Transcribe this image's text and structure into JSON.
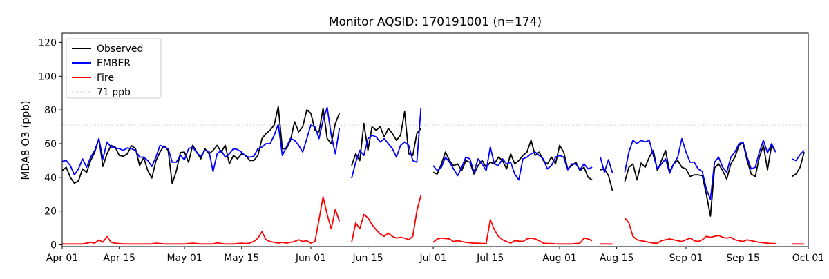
{
  "title": "Monitor AQSID: 170191001 (n=174)",
  "legend": {
    "items": [
      {
        "label": "Observed",
        "color": "#000000",
        "style": "solid"
      },
      {
        "label": "EMBER",
        "color": "#0000ff",
        "style": "solid"
      },
      {
        "label": "Fire",
        "color": "#ff0000",
        "style": "solid"
      },
      {
        "label": "71 ppb",
        "color": "#d3d3d3",
        "style": "dotted"
      }
    ]
  },
  "chart_data": {
    "type": "line",
    "title": "Monitor AQSID: 170191001 (n=174)",
    "xlabel": "",
    "ylabel": "MDA8 O3 (ppb)",
    "grid": false,
    "legend_position": "upper left",
    "ylim": [
      -1,
      125.5
    ],
    "yticks": [
      0,
      20,
      40,
      60,
      80,
      100,
      120
    ],
    "n_days": 183,
    "x_start": "Apr 01",
    "x_end": "Oct 01",
    "xticks": [
      {
        "label": "Apr 01",
        "day": 0
      },
      {
        "label": "Apr 15",
        "day": 14
      },
      {
        "label": "May 01",
        "day": 30
      },
      {
        "label": "May 15",
        "day": 44
      },
      {
        "label": "Jun 01",
        "day": 61
      },
      {
        "label": "Jun 15",
        "day": 75
      },
      {
        "label": "Jul 01",
        "day": 91
      },
      {
        "label": "Jul 15",
        "day": 105
      },
      {
        "label": "Aug 01",
        "day": 122
      },
      {
        "label": "Aug 15",
        "day": 136
      },
      {
        "label": "Sep 01",
        "day": 153
      },
      {
        "label": "Sep 15",
        "day": 167
      },
      {
        "label": "Oct 01",
        "day": 183
      }
    ],
    "reference_line": {
      "label": "71 ppb",
      "value": 71,
      "color": "#d3d3d3",
      "style": "dotted"
    },
    "series": [
      {
        "name": "Observed",
        "color": "#000000",
        "values": [
          44,
          46,
          40,
          36.5,
          38,
          45,
          43,
          50,
          55,
          63,
          46.5,
          54,
          59,
          58,
          53,
          52.5,
          54,
          58.8,
          57,
          47,
          51.8,
          44,
          39.6,
          49.8,
          55,
          58.8,
          56,
          36.3,
          43.7,
          54.7,
          55,
          49,
          59,
          55,
          51,
          57,
          54,
          56,
          59,
          55,
          59,
          48,
          53,
          51,
          54,
          53,
          50,
          50,
          53,
          63,
          66,
          68,
          71,
          82,
          57,
          57,
          62,
          73,
          67,
          70,
          80,
          78,
          68,
          67,
          81,
          63,
          60,
          72,
          78,
          null,
          null,
          47,
          54,
          50,
          72,
          56,
          70,
          68,
          70,
          64,
          69,
          66,
          62,
          65,
          79,
          54,
          53,
          66,
          69,
          null,
          null,
          43,
          42,
          48,
          55,
          50,
          47,
          48,
          44,
          50,
          49,
          42,
          47,
          50,
          46,
          49,
          48,
          52,
          50,
          45,
          54,
          48,
          50,
          53,
          55,
          62,
          53,
          55,
          50,
          48,
          52,
          48,
          59,
          55,
          45,
          47,
          49,
          44,
          46,
          40,
          38.5,
          null,
          44.5,
          45,
          41,
          32,
          null,
          null,
          37.5,
          46,
          48,
          38.5,
          48.5,
          46,
          52,
          56,
          44,
          50,
          56,
          43.5,
          48,
          50,
          46,
          45,
          40.5,
          41.5,
          41.5,
          41,
          30,
          17,
          45.5,
          48,
          44,
          39,
          48,
          52,
          59,
          60.5,
          50,
          42,
          40.5,
          52,
          59,
          44.5,
          59,
          55,
          null,
          null,
          null,
          40.5,
          42,
          46,
          55
        ]
      },
      {
        "name": "EMBER",
        "color": "#0000ff",
        "values": [
          49.5,
          50,
          47,
          41.5,
          45,
          51,
          46,
          52,
          56,
          63,
          51,
          61,
          58,
          57.5,
          57,
          56,
          57.5,
          57,
          56,
          52,
          52,
          50,
          46.5,
          52,
          59,
          58,
          57,
          49,
          49,
          53,
          50.5,
          57,
          58,
          54.5,
          52.5,
          56,
          55.5,
          43.5,
          54,
          56,
          52,
          54,
          57,
          56.5,
          55,
          52.5,
          52,
          52.5,
          57,
          58,
          60,
          60,
          65,
          71.5,
          53,
          58,
          63,
          62,
          59,
          55,
          63,
          71,
          70,
          63,
          74,
          81.5,
          65,
          54,
          69,
          null,
          null,
          39.5,
          49,
          56,
          53,
          63,
          65,
          64,
          61,
          63,
          60,
          57,
          52,
          59,
          61,
          59,
          50,
          49,
          81,
          null,
          null,
          47,
          44,
          46,
          52,
          49,
          45,
          41,
          46,
          52,
          51,
          43,
          51,
          48,
          44,
          58,
          48,
          47,
          51,
          48,
          49,
          42,
          38.5,
          51,
          52,
          54,
          55,
          53,
          51,
          45,
          47,
          52,
          53,
          52,
          44.5,
          48,
          48,
          44.5,
          48,
          45,
          46,
          null,
          52,
          43,
          50.5,
          42.5,
          null,
          null,
          43,
          55,
          62,
          60,
          62,
          61,
          62,
          53,
          45,
          48,
          51,
          42.5,
          48,
          52,
          63,
          55,
          49,
          49,
          45,
          43.5,
          33,
          27,
          49,
          52,
          46,
          43,
          52,
          55,
          60,
          61,
          52,
          45,
          46,
          55,
          62,
          54.5,
          60,
          55,
          null,
          null,
          null,
          51,
          50,
          53.5,
          56
        ]
      },
      {
        "name": "Fire",
        "color": "#ff0000",
        "values": [
          0.5,
          0.5,
          0.5,
          0.5,
          0.5,
          0.5,
          1,
          1.5,
          1,
          2.9,
          1.6,
          4.9,
          1.5,
          1,
          0.8,
          0.5,
          0.5,
          0.5,
          0.5,
          0.5,
          0.5,
          0.5,
          0.5,
          1,
          0.8,
          0.5,
          0.5,
          0.5,
          0.5,
          0.5,
          0.5,
          0.8,
          1,
          0.8,
          0.5,
          0.5,
          0.5,
          0.5,
          1.2,
          0.8,
          0.5,
          0.5,
          0.5,
          0.8,
          1,
          0.8,
          1,
          2,
          4,
          7.8,
          3,
          2,
          1.5,
          1,
          1.5,
          1,
          1.5,
          2,
          3,
          2,
          2.5,
          1,
          2,
          15,
          28.5,
          18,
          9.5,
          21,
          14,
          null,
          null,
          1.5,
          13,
          9.5,
          18,
          16,
          12,
          9,
          6.5,
          5,
          7,
          5,
          4,
          4.5,
          4,
          3,
          5,
          20,
          29.5,
          null,
          null,
          1.5,
          3.5,
          4,
          3.8,
          3.5,
          2,
          2.5,
          2,
          1.5,
          1.2,
          1,
          1,
          0.8,
          0.8,
          15,
          9,
          5,
          3,
          2,
          1,
          2.5,
          2.2,
          2,
          3.5,
          4,
          3.5,
          2.5,
          1,
          0.8,
          0.8,
          0.6,
          0.5,
          0.5,
          0.5,
          0.5,
          0.8,
          1,
          4,
          3.5,
          2.5,
          null,
          0.5,
          0.5,
          0.5,
          0.5,
          null,
          null,
          16,
          13,
          5,
          3,
          2.5,
          2,
          1.5,
          1,
          1,
          2.5,
          3,
          3.5,
          3,
          2.5,
          2,
          3,
          4,
          2.5,
          2,
          3,
          5,
          4.5,
          5,
          5.5,
          4.5,
          4,
          4.5,
          3,
          2.5,
          2,
          3,
          2.5,
          2,
          1.5,
          1.2,
          1,
          0.8,
          0.8,
          null,
          null,
          null,
          0.5,
          0.5,
          0.5,
          0.5
        ]
      }
    ]
  }
}
